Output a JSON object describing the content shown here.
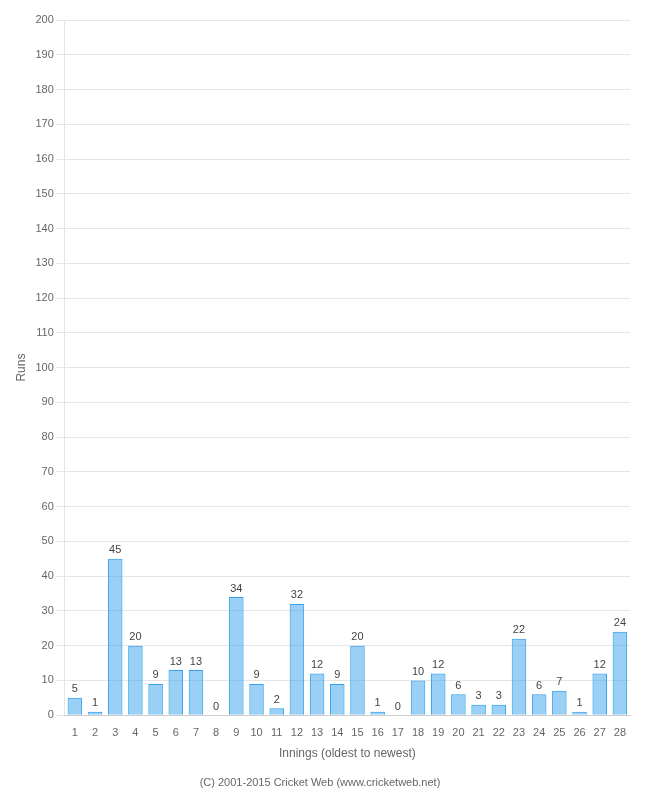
{
  "chart_data": {
    "type": "bar",
    "xlabel": "Innings (oldest to newest)",
    "ylabel": "Runs",
    "footer": "(C) 2001-2015 Cricket Web (www.cricketweb.net)",
    "categories": [
      "1",
      "2",
      "3",
      "4",
      "5",
      "6",
      "7",
      "8",
      "9",
      "10",
      "11",
      "12",
      "13",
      "14",
      "15",
      "16",
      "17",
      "18",
      "19",
      "20",
      "21",
      "22",
      "23",
      "24",
      "25",
      "26",
      "27",
      "28"
    ],
    "values": [
      5,
      1,
      45,
      20,
      9,
      13,
      13,
      0,
      34,
      9,
      2,
      32,
      12,
      9,
      20,
      1,
      0,
      10,
      12,
      6,
      3,
      3,
      22,
      6,
      7,
      1,
      12,
      24
    ],
    "ylim": [
      0,
      200
    ],
    "yticks": [
      0,
      10,
      20,
      30,
      40,
      50,
      60,
      70,
      80,
      90,
      100,
      110,
      120,
      130,
      140,
      150,
      160,
      170,
      180,
      190,
      200
    ],
    "grid": true,
    "data_labels": true
  }
}
